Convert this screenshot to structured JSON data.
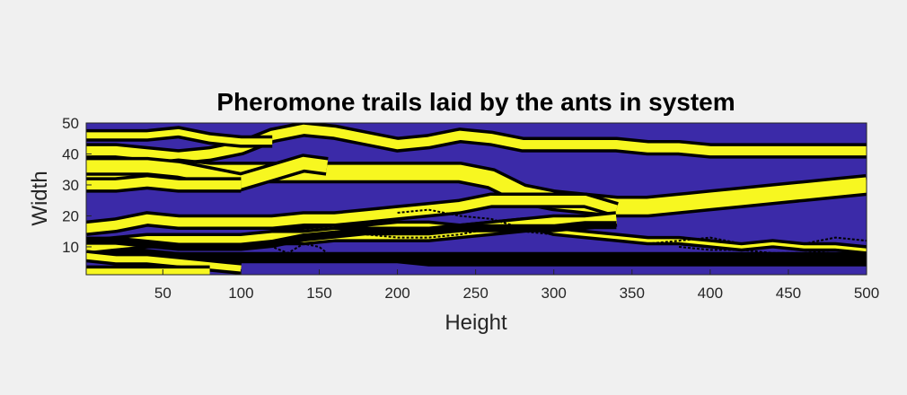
{
  "chart_data": {
    "type": "heatmap",
    "title": "Pheromone trails laid by the ants in system",
    "xlabel": "Height",
    "ylabel": "Width",
    "xlim": [
      1,
      500
    ],
    "ylim": [
      1,
      50
    ],
    "xticks": [
      50,
      100,
      150,
      200,
      250,
      300,
      350,
      400,
      450,
      500
    ],
    "yticks": [
      10,
      20,
      30,
      40,
      50
    ],
    "grid": false,
    "colors": {
      "background": "#3b2aa8",
      "trail": "#f7f720",
      "outline": "#000000"
    },
    "trails": [
      {
        "x": [
          1,
          20,
          40,
          60,
          80,
          100,
          120,
          140,
          160,
          180,
          200,
          220,
          240,
          260,
          280,
          300,
          320,
          340,
          360,
          380,
          400,
          420,
          440,
          460,
          480,
          500
        ],
        "y": [
          41,
          41,
          40,
          39,
          40,
          42,
          46,
          48,
          47,
          45,
          43,
          44,
          46,
          45,
          43,
          43,
          43,
          43,
          42,
          42,
          41,
          41,
          41,
          41,
          41,
          41
        ],
        "width": 3
      },
      {
        "x": [
          1,
          20,
          40,
          60,
          80,
          100,
          120,
          140,
          160,
          180,
          200,
          220,
          240,
          260,
          280,
          300,
          320,
          340,
          360,
          380,
          400,
          420,
          440,
          460,
          480,
          500
        ],
        "y": [
          34,
          34,
          34,
          35,
          34,
          34,
          34,
          34,
          34,
          34,
          34,
          34,
          34,
          32,
          27,
          25,
          24,
          23,
          23,
          24,
          25,
          26,
          27,
          28,
          29,
          30
        ],
        "width": 5
      },
      {
        "x": [
          1,
          20,
          40,
          60,
          80,
          100,
          120,
          140,
          155
        ],
        "y": [
          36,
          36,
          36,
          35,
          33,
          31,
          34,
          37,
          36
        ],
        "width": 4
      },
      {
        "x": [
          1,
          20,
          40,
          60,
          80,
          100
        ],
        "y": [
          30,
          30,
          31,
          30,
          30,
          30
        ],
        "width": 3
      },
      {
        "x": [
          1,
          20,
          40,
          60,
          80,
          100,
          120,
          140,
          160,
          180,
          200,
          220,
          240,
          260,
          280,
          300,
          320,
          340
        ],
        "y": [
          16,
          17,
          19,
          18,
          18,
          18,
          18,
          19,
          19,
          20,
          21,
          22,
          23,
          25,
          25,
          25,
          25,
          22
        ],
        "width": 3
      },
      {
        "x": [
          1,
          20,
          40,
          60,
          80,
          100,
          120,
          140,
          160,
          180,
          200,
          220,
          240,
          260,
          280,
          300,
          320,
          340,
          360,
          380,
          400,
          420,
          440,
          460,
          480,
          500
        ],
        "y": [
          9,
          9,
          8,
          7,
          6,
          6,
          6,
          6,
          6,
          6,
          6,
          5,
          5,
          5,
          5,
          5,
          5,
          5,
          5,
          5,
          5,
          5,
          5,
          5,
          5,
          5
        ],
        "width": 0
      },
      {
        "x": [
          120,
          140,
          160,
          180,
          200,
          220,
          240,
          260,
          280,
          300,
          320,
          340,
          360,
          380,
          400,
          420,
          440,
          460,
          480,
          500
        ],
        "y": [
          15,
          15,
          16,
          16,
          17,
          17,
          16,
          17,
          18,
          15,
          14,
          13,
          12,
          12,
          11,
          10,
          11,
          10,
          10,
          9
        ],
        "width": 1
      },
      {
        "x": [
          1,
          20,
          40,
          60,
          80,
          100,
          120,
          140,
          160,
          180,
          200,
          220,
          240,
          260,
          280,
          300,
          320,
          340
        ],
        "y": [
          10,
          11,
          12,
          12,
          12,
          12,
          13,
          13,
          14,
          14,
          14,
          14,
          15,
          16,
          17,
          18,
          18,
          19
        ],
        "width": 3
      },
      {
        "x": [
          1,
          20,
          40,
          60,
          80,
          100,
          120,
          140,
          160,
          180,
          200,
          220,
          240,
          260,
          280,
          300,
          320,
          340,
          360,
          380,
          400,
          420,
          440,
          460,
          480,
          500
        ],
        "y": [
          7,
          7,
          7,
          7,
          7,
          7,
          7,
          7,
          7,
          7,
          7,
          7,
          7,
          7,
          7,
          7,
          7,
          7,
          7,
          7,
          7,
          7,
          7,
          7,
          7,
          7
        ],
        "width": 0
      },
      {
        "x": [
          1,
          20,
          40,
          60,
          80,
          100,
          120,
          140,
          160,
          180,
          200,
          220,
          240,
          260,
          280,
          300,
          320,
          340
        ],
        "y": [
          12,
          12,
          11,
          10,
          10,
          10,
          11,
          13,
          14,
          15,
          15,
          15,
          16,
          16,
          16,
          16,
          17,
          17
        ],
        "width": 0
      },
      {
        "x": [
          1,
          20,
          40,
          60,
          80,
          100
        ],
        "y": [
          7,
          6,
          6,
          5,
          4,
          3
        ],
        "width": 2
      },
      {
        "x": [
          1,
          20,
          40,
          60,
          80
        ],
        "y": [
          2,
          2,
          2,
          2,
          2
        ],
        "width": 2
      },
      {
        "x": [
          1,
          20,
          40,
          60,
          80,
          100,
          120
        ],
        "y": [
          46,
          46,
          46,
          47,
          45,
          44,
          44
        ],
        "width": 2
      }
    ],
    "noise_lines": [
      {
        "x": [
          110,
          120,
          130,
          140,
          150,
          160
        ],
        "y": [
          11,
          10,
          8,
          11,
          10,
          6
        ]
      },
      {
        "x": [
          160,
          180,
          200,
          220,
          240,
          260,
          280,
          300,
          320,
          340,
          360,
          380,
          400,
          420,
          440,
          460,
          480,
          500
        ],
        "y": [
          15,
          14,
          13,
          13,
          14,
          16,
          15,
          14,
          13,
          12,
          11,
          12,
          13,
          11,
          12,
          11,
          13,
          12
        ]
      },
      {
        "x": [
          200,
          220,
          240,
          260,
          280
        ],
        "y": [
          21,
          22,
          20,
          19,
          16
        ]
      },
      {
        "x": [
          380,
          400,
          420,
          440,
          460,
          480,
          500
        ],
        "y": [
          10,
          9,
          9,
          8,
          8,
          9,
          8
        ]
      }
    ]
  }
}
